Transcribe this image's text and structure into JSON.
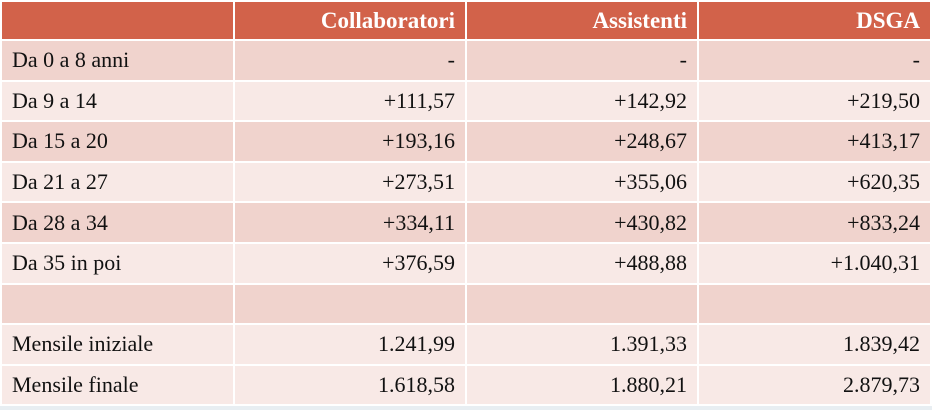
{
  "table": {
    "headers": [
      "",
      "Collaboratori",
      "Assistenti",
      "DSGA"
    ],
    "rows": [
      [
        "Da 0 a 8 anni",
        "-",
        "-",
        "-"
      ],
      [
        "Da 9 a 14",
        "+111,57",
        "+142,92",
        "+219,50"
      ],
      [
        "Da 15 a 20",
        "+193,16",
        "+248,67",
        "+413,17"
      ],
      [
        "Da 21 a 27",
        "+273,51",
        "+355,06",
        "+620,35"
      ],
      [
        "Da 28 a 34",
        "+334,11",
        "+430,82",
        "+833,24"
      ],
      [
        "Da 35 in poi",
        "+376,59",
        "+488,88",
        "+1.040,31"
      ],
      [
        "",
        "",
        "",
        ""
      ],
      [
        "Mensile iniziale",
        "1.241,99",
        "1.391,33",
        "1.839,42"
      ],
      [
        "Mensile finale",
        "1.618,58",
        "1.880,21",
        "2.879,73"
      ]
    ]
  },
  "colors": {
    "header_bg": "#d2624a",
    "row_dark": "#f0d3cd",
    "row_light": "#f8e9e6"
  }
}
